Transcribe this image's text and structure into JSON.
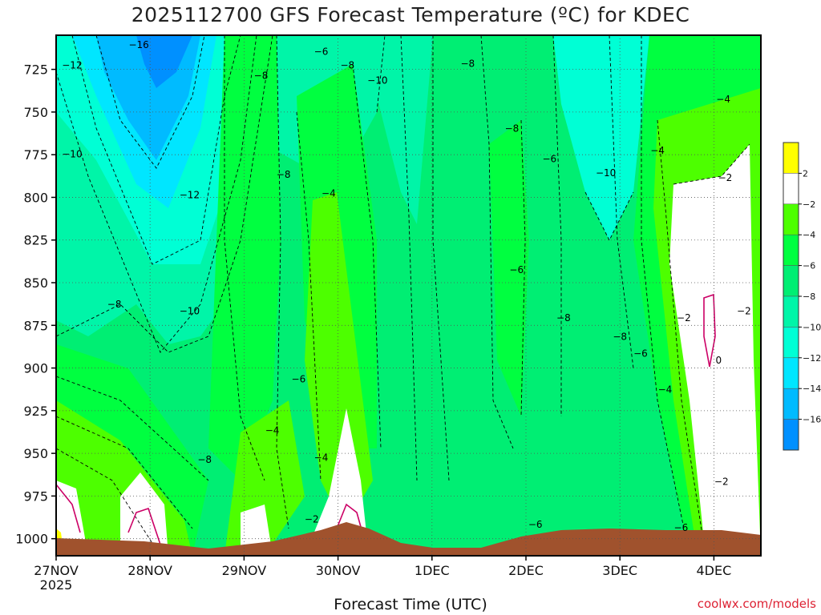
{
  "chart_data": {
    "type": "heatmap",
    "title": "2025112700 GFS Forecast Temperature (ºC) for KDEC",
    "xlabel": "Forecast Time (UTC)",
    "ylabel": "",
    "credit": "coolwx.com/models",
    "x_ticks": [
      "27NOV",
      "28NOV",
      "29NOV",
      "30NOV",
      "1DEC",
      "2DEC",
      "3DEC",
      "4DEC"
    ],
    "x_year_label": "2025",
    "y_ticks": [
      725,
      750,
      775,
      800,
      825,
      850,
      875,
      900,
      925,
      950,
      975,
      1000
    ],
    "ylim": [
      1010,
      705
    ],
    "grid": true,
    "legend": "right",
    "colorbar": {
      "ticks": [
        "2",
        "−2",
        "−4",
        "−6",
        "−8",
        "−10",
        "−12",
        "−14",
        "−16"
      ],
      "bins": [
        {
          "range": "> 2",
          "color": "#ffff00"
        },
        {
          "range": "-2 to 2",
          "color": "#ffffff"
        },
        {
          "range": "-4 to -2",
          "color": "#4dff00"
        },
        {
          "range": "-6 to -4",
          "color": "#00ff40"
        },
        {
          "range": "-8 to -6",
          "color": "#00ee73"
        },
        {
          "range": "-10 to -8",
          "color": "#00f5a8"
        },
        {
          "range": "-12 to -10",
          "color": "#00ffd5"
        },
        {
          "range": "-14 to -12",
          "color": "#00e6ff"
        },
        {
          "range": "-16 to -14",
          "color": "#00bbff"
        },
        {
          "range": "< -16",
          "color": "#0090ff"
        }
      ]
    },
    "ground_color": "#a0522d",
    "contour_labels": [
      {
        "text": "−16",
        "day": 0.88,
        "p": 712
      },
      {
        "text": "−12",
        "day": 0.17,
        "p": 724
      },
      {
        "text": "−10",
        "day": 0.17,
        "p": 776
      },
      {
        "text": "−12",
        "day": 1.42,
        "p": 800
      },
      {
        "text": "−10",
        "day": 1.42,
        "p": 868
      },
      {
        "text": "−8",
        "day": 0.62,
        "p": 864
      },
      {
        "text": "−8",
        "day": 2.18,
        "p": 730
      },
      {
        "text": "−6",
        "day": 2.82,
        "p": 716
      },
      {
        "text": "−8",
        "day": 3.1,
        "p": 724
      },
      {
        "text": "−10",
        "day": 3.42,
        "p": 733
      },
      {
        "text": "−8",
        "day": 4.38,
        "p": 723
      },
      {
        "text": "−8",
        "day": 4.85,
        "p": 761
      },
      {
        "text": "−8",
        "day": 2.42,
        "p": 788
      },
      {
        "text": "−4",
        "day": 2.9,
        "p": 799
      },
      {
        "text": "−6",
        "day": 5.25,
        "p": 779
      },
      {
        "text": "−10",
        "day": 5.85,
        "p": 787
      },
      {
        "text": "−4",
        "day": 6.4,
        "p": 774
      },
      {
        "text": "−4",
        "day": 7.1,
        "p": 744
      },
      {
        "text": "−2",
        "day": 7.12,
        "p": 790
      },
      {
        "text": "−6",
        "day": 4.9,
        "p": 844
      },
      {
        "text": "−8",
        "day": 5.4,
        "p": 872
      },
      {
        "text": "−8",
        "day": 6.0,
        "p": 883
      },
      {
        "text": "−6",
        "day": 6.22,
        "p": 893
      },
      {
        "text": "−2",
        "day": 6.68,
        "p": 872
      },
      {
        "text": "−2",
        "day": 7.32,
        "p": 868
      },
      {
        "text": "0",
        "day": 7.05,
        "p": 897
      },
      {
        "text": "−4",
        "day": 6.48,
        "p": 914
      },
      {
        "text": "−6",
        "day": 2.58,
        "p": 908
      },
      {
        "text": "−4",
        "day": 2.3,
        "p": 938
      },
      {
        "text": "−4",
        "day": 2.82,
        "p": 954
      },
      {
        "text": "−8",
        "day": 1.58,
        "p": 955
      },
      {
        "text": "−2",
        "day": 2.72,
        "p": 990
      },
      {
        "text": "−2",
        "day": 7.08,
        "p": 968
      },
      {
        "text": "−6",
        "day": 5.1,
        "p": 993
      },
      {
        "text": "−6",
        "day": 6.65,
        "p": 995
      }
    ]
  }
}
